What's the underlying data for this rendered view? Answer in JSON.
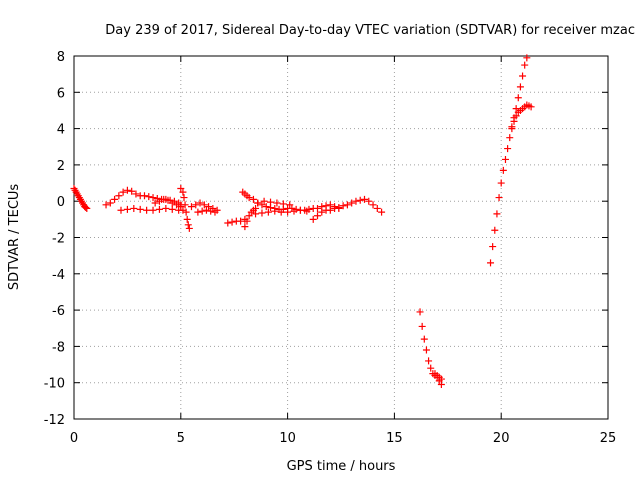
{
  "chart_data": {
    "type": "scatter",
    "title": "Day 239 of 2017, Sidereal Day-to-day VTEC variation (SDTVAR) for receiver mzac",
    "xlabel": "GPS time / hours",
    "ylabel": "SDTVAR / TECUs",
    "xlim": [
      0,
      25
    ],
    "ylim": [
      -12,
      8
    ],
    "xticks": [
      0,
      5,
      10,
      15,
      20,
      25
    ],
    "yticks": [
      8,
      6,
      4,
      2,
      0,
      -2,
      -4,
      -6,
      -8,
      -10,
      -12
    ],
    "grid": true,
    "marker": "+",
    "color": "#ff0000",
    "segments": [
      {
        "name": "arc-a",
        "x": [
          0.0,
          0.05,
          0.1,
          0.15,
          0.2,
          0.25,
          0.3,
          0.35,
          0.4,
          0.45,
          0.5,
          0.55,
          0.6
        ],
        "y": [
          0.7,
          0.6,
          0.5,
          0.4,
          0.3,
          0.2,
          0.1,
          0.0,
          -0.1,
          -0.2,
          -0.3,
          -0.35,
          -0.4
        ]
      },
      {
        "name": "arc-b",
        "x": [
          1.5,
          1.7,
          1.9,
          2.1,
          2.3,
          2.5,
          2.7,
          2.9,
          3.1,
          3.3,
          3.5,
          3.7,
          3.9,
          4.1,
          4.3,
          4.5,
          4.7,
          4.9,
          5.0
        ],
        "y": [
          -0.2,
          -0.1,
          0.1,
          0.3,
          0.5,
          0.6,
          0.55,
          0.4,
          0.3,
          0.3,
          0.25,
          0.2,
          0.15,
          0.1,
          0.1,
          0.05,
          0.0,
          -0.1,
          -0.2
        ]
      },
      {
        "name": "arc-c",
        "x": [
          2.2,
          2.5,
          2.8,
          3.1,
          3.4,
          3.7,
          4.0,
          4.3,
          4.6,
          4.9,
          5.1
        ],
        "y": [
          -0.5,
          -0.45,
          -0.4,
          -0.45,
          -0.5,
          -0.5,
          -0.45,
          -0.4,
          -0.45,
          -0.5,
          -0.5
        ]
      },
      {
        "name": "arc-d",
        "x": [
          3.8,
          4.0,
          4.2,
          4.4,
          4.6,
          4.8,
          5.0
        ],
        "y": [
          -0.1,
          0.0,
          0.1,
          0.05,
          -0.1,
          -0.2,
          -0.3
        ]
      },
      {
        "name": "arc-e",
        "x": [
          5.0,
          5.1,
          5.15,
          5.2,
          5.25,
          5.3,
          5.35,
          5.4
        ],
        "y": [
          0.7,
          0.5,
          0.2,
          -0.2,
          -0.6,
          -1.0,
          -1.3,
          -1.5
        ]
      },
      {
        "name": "arc-f",
        "x": [
          5.5,
          5.7,
          5.9,
          6.1,
          6.3,
          6.5,
          6.7
        ],
        "y": [
          -0.3,
          -0.2,
          -0.1,
          -0.2,
          -0.3,
          -0.4,
          -0.5
        ]
      },
      {
        "name": "arc-g",
        "x": [
          5.8,
          6.0,
          6.2,
          6.4,
          6.6
        ],
        "y": [
          -0.6,
          -0.55,
          -0.5,
          -0.55,
          -0.6
        ]
      },
      {
        "name": "arc-h",
        "x": [
          7.2,
          7.4,
          7.6,
          7.8,
          8.0
        ],
        "y": [
          -1.2,
          -1.15,
          -1.1,
          -1.1,
          -1.0
        ]
      },
      {
        "name": "arc-i",
        "x": [
          7.9,
          8.0,
          8.1,
          8.2,
          8.4,
          8.6,
          8.8,
          9.0,
          9.2,
          9.4,
          9.6,
          9.8,
          10.0,
          10.2,
          10.4,
          10.6,
          10.8,
          11.0,
          11.2,
          11.4
        ],
        "y": [
          0.5,
          0.4,
          0.3,
          0.2,
          0.1,
          -0.1,
          -0.2,
          -0.3,
          -0.35,
          -0.4,
          -0.45,
          -0.45,
          -0.4,
          -0.4,
          -0.45,
          -0.5,
          -0.5,
          -0.45,
          -0.4,
          -0.4
        ]
      },
      {
        "name": "arc-j",
        "x": [
          8.0,
          8.1,
          8.2,
          8.3,
          8.4,
          8.5
        ],
        "y": [
          -1.4,
          -1.1,
          -0.8,
          -0.6,
          -0.5,
          -0.4
        ]
      },
      {
        "name": "arc-k",
        "x": [
          8.5,
          8.8,
          9.1,
          9.4,
          9.7,
          10.0,
          10.3,
          10.6,
          10.9
        ],
        "y": [
          -0.7,
          -0.65,
          -0.6,
          -0.55,
          -0.6,
          -0.6,
          -0.55,
          -0.5,
          -0.55
        ]
      },
      {
        "name": "arc-l",
        "x": [
          8.6,
          8.9,
          9.2,
          9.5,
          9.8,
          10.1
        ],
        "y": [
          -0.1,
          0.0,
          -0.05,
          -0.1,
          -0.15,
          -0.2
        ]
      },
      {
        "name": "arc-m",
        "x": [
          11.2,
          11.4,
          11.6,
          11.8,
          12.0,
          12.2,
          12.4,
          12.6,
          12.8,
          13.0,
          13.2,
          13.4,
          13.6,
          13.8,
          14.0,
          14.2,
          14.4
        ],
        "y": [
          -1.0,
          -0.8,
          -0.6,
          -0.5,
          -0.5,
          -0.4,
          -0.35,
          -0.25,
          -0.2,
          -0.1,
          0.0,
          0.05,
          0.1,
          0.0,
          -0.2,
          -0.4,
          -0.6
        ]
      },
      {
        "name": "arc-n",
        "x": [
          11.6,
          11.8,
          12.0,
          12.2,
          12.4
        ],
        "y": [
          -0.3,
          -0.25,
          -0.2,
          -0.3,
          -0.4
        ]
      },
      {
        "name": "arc-o",
        "x": [
          16.2,
          16.3,
          16.4,
          16.5,
          16.6,
          16.7,
          16.8,
          16.9,
          17.0,
          17.1,
          17.2
        ],
        "y": [
          -6.1,
          -6.9,
          -7.6,
          -8.2,
          -8.8,
          -9.2,
          -9.5,
          -9.6,
          -9.7,
          -9.9,
          -10.1
        ]
      },
      {
        "name": "arc-p",
        "x": [
          16.9,
          17.0,
          17.1,
          17.2
        ],
        "y": [
          -9.5,
          -9.6,
          -9.7,
          -9.8
        ]
      },
      {
        "name": "arc-q",
        "x": [
          19.5,
          19.6,
          19.7,
          19.8,
          19.9,
          20.0,
          20.1,
          20.2,
          20.3,
          20.4,
          20.5,
          20.6,
          20.7,
          20.8,
          20.9,
          21.0,
          21.1,
          21.2
        ],
        "y": [
          -3.4,
          -2.5,
          -1.6,
          -0.7,
          0.2,
          1.0,
          1.7,
          2.3,
          2.9,
          3.5,
          4.1,
          4.6,
          5.1,
          5.7,
          6.3,
          6.9,
          7.5,
          7.9
        ]
      },
      {
        "name": "arc-r",
        "x": [
          20.5,
          20.6,
          20.7,
          20.8,
          20.9,
          21.0,
          21.1,
          21.2,
          21.3,
          21.4
        ],
        "y": [
          4.0,
          4.4,
          4.7,
          4.9,
          5.0,
          5.1,
          5.2,
          5.3,
          5.25,
          5.2
        ]
      }
    ]
  }
}
